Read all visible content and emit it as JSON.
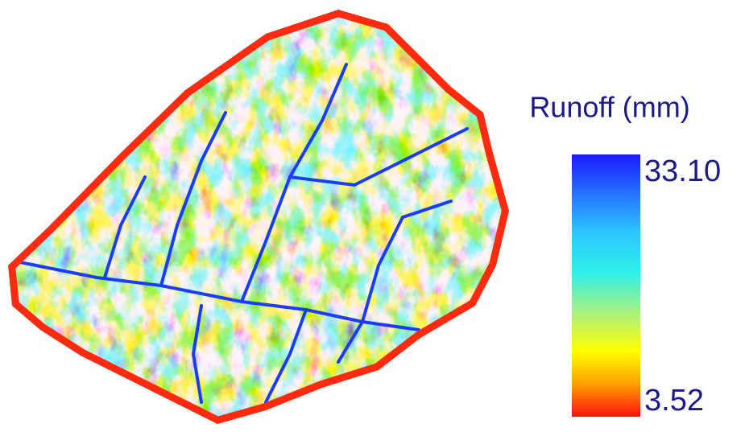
{
  "legend": {
    "title": "Runoff (mm)",
    "ticks": [
      {
        "value": 33.1,
        "label": "33.10"
      },
      {
        "value": 3.52,
        "label": "3.52"
      }
    ]
  }
}
